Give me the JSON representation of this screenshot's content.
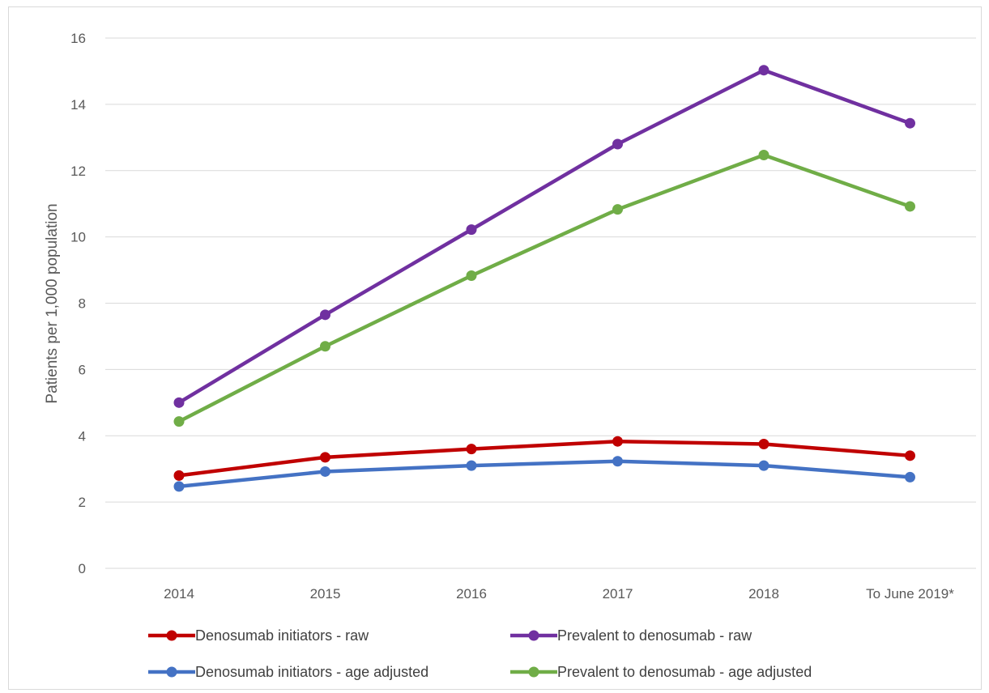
{
  "chart_data": {
    "type": "line",
    "title": "",
    "xlabel": "",
    "ylabel": "Patients per 1,000 population",
    "categories": [
      "2014",
      "2015",
      "2016",
      "2017",
      "2018",
      "To June 2019*"
    ],
    "ylim": [
      0,
      16
    ],
    "yticks": [
      "0",
      "2",
      "4",
      "6",
      "8",
      "10",
      "12",
      "14",
      "16"
    ],
    "grid": true,
    "legend_position": "bottom",
    "series": [
      {
        "name": "Denosumab initiators - raw",
        "color": "#c00000",
        "values": [
          2.8,
          3.35,
          3.6,
          3.83,
          3.75,
          3.4
        ]
      },
      {
        "name": "Prevalent to denosumab - raw",
        "color": "#7030a0",
        "values": [
          5.0,
          7.65,
          10.22,
          12.8,
          15.03,
          13.43
        ]
      },
      {
        "name": "Denosumab initiators - age adjusted",
        "color": "#4472c4",
        "values": [
          2.47,
          2.92,
          3.1,
          3.23,
          3.1,
          2.75
        ]
      },
      {
        "name": "Prevalent to denosumab - age adjusted",
        "color": "#70ad47",
        "values": [
          4.43,
          6.7,
          8.83,
          10.83,
          12.47,
          10.92
        ]
      }
    ]
  }
}
